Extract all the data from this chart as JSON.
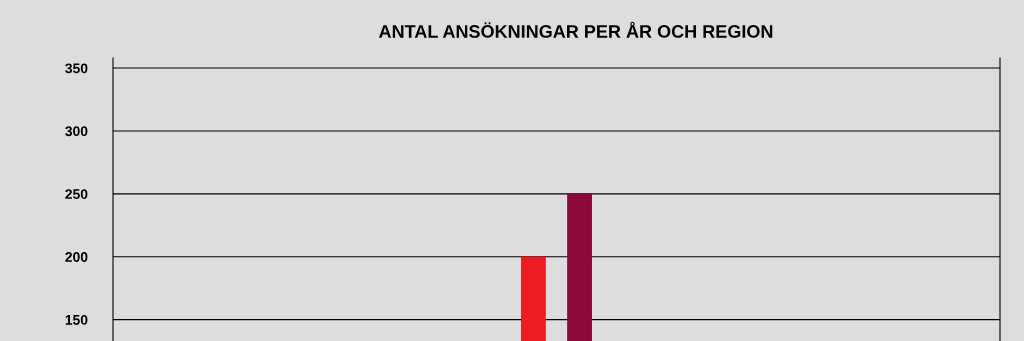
{
  "chart_data": {
    "type": "bar",
    "title": "ANTAL ANSÖKNINGAR PER ÅR OCH REGION",
    "categories": [
      null
    ],
    "series": [
      {
        "color": "#ed1c24",
        "values": [
          200
        ]
      },
      {
        "color": "#8b0a3a",
        "values": [
          250
        ]
      }
    ],
    "ylim": [
      133,
      358
    ],
    "yticks": [
      150,
      200,
      250,
      300,
      350
    ],
    "grid": "y"
  }
}
